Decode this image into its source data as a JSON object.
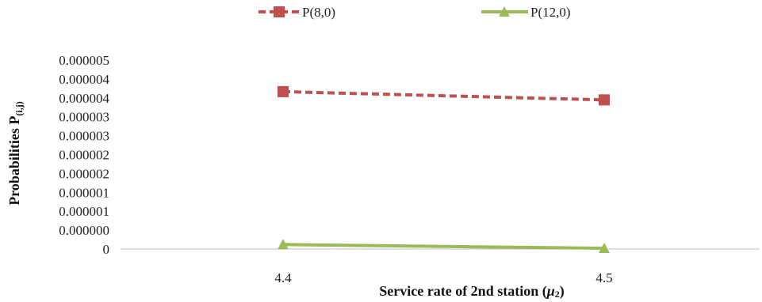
{
  "chart_data": {
    "type": "line",
    "title": "",
    "xlabel": "Service rate of 2nd station",
    "xlabel_symbol": "μ",
    "xlabel_symbol_sub": "2",
    "ylabel": "Probabilities P",
    "ylabel_sub": "(i,j)",
    "x": [
      4.4,
      4.5
    ],
    "x_tick_labels": [
      "4.4",
      "4.5"
    ],
    "y_tick_labels": [
      "0",
      "0.000000",
      "0.000001",
      "0.000001",
      "0.000002",
      "0.000002",
      "0.000003",
      "0.000003",
      "0.000004",
      "0.000004",
      "0.000005"
    ],
    "ylim": [
      0,
      5e-06
    ],
    "grid": false,
    "legend_position": "top",
    "series": [
      {
        "name": "P(8,0)",
        "values": [
          4.2e-06,
          3.98e-06
        ],
        "color": "#C0504D",
        "line_style": "dashed",
        "marker": "square"
      },
      {
        "name": "P(12,0)",
        "values": [
          1.2e-07,
          2e-08
        ],
        "color": "#9BBB59",
        "line_style": "solid",
        "marker": "triangle"
      }
    ]
  }
}
